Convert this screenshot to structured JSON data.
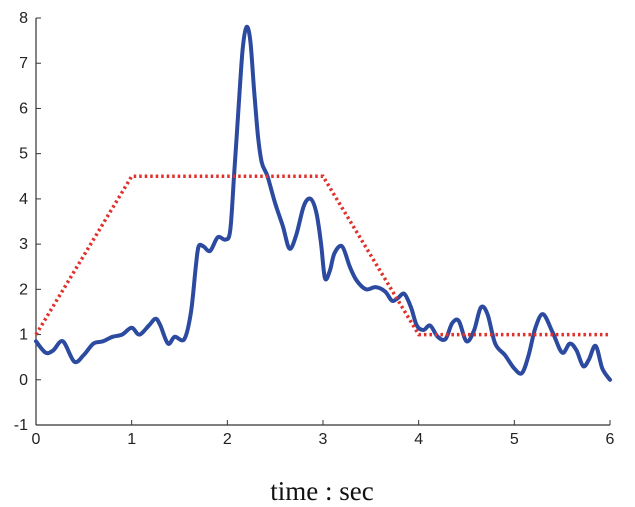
{
  "chart_data": {
    "type": "line",
    "title": "",
    "xlabel": "time : sec",
    "ylabel": "",
    "xlim": [
      0,
      6
    ],
    "ylim": [
      -1,
      8
    ],
    "xticks": [
      0,
      1,
      2,
      3,
      4,
      5,
      6
    ],
    "yticks": [
      -1,
      0,
      1,
      2,
      3,
      4,
      5,
      6,
      7,
      8
    ],
    "grid": false,
    "legend": "none",
    "series": [
      {
        "style": "solid",
        "color": "#2b4aa0",
        "x": [
          0.0,
          0.1,
          0.18,
          0.28,
          0.4,
          0.5,
          0.6,
          0.7,
          0.8,
          0.9,
          1.0,
          1.08,
          1.18,
          1.25,
          1.3,
          1.38,
          1.45,
          1.55,
          1.62,
          1.67,
          1.7,
          1.75,
          1.82,
          1.9,
          1.98,
          2.03,
          2.07,
          2.12,
          2.16,
          2.2,
          2.24,
          2.28,
          2.32,
          2.36,
          2.42,
          2.5,
          2.58,
          2.65,
          2.72,
          2.8,
          2.87,
          2.93,
          2.98,
          3.02,
          3.07,
          3.12,
          3.2,
          3.28,
          3.35,
          3.45,
          3.55,
          3.65,
          3.72,
          3.78,
          3.85,
          3.92,
          3.98,
          4.05,
          4.12,
          4.2,
          4.28,
          4.35,
          4.42,
          4.5,
          4.58,
          4.65,
          4.72,
          4.8,
          4.9,
          5.0,
          5.08,
          5.15,
          5.22,
          5.3,
          5.4,
          5.5,
          5.58,
          5.65,
          5.72,
          5.78,
          5.85,
          5.92,
          6.0
        ],
        "y": [
          0.85,
          0.6,
          0.65,
          0.85,
          0.4,
          0.55,
          0.8,
          0.85,
          0.95,
          1.0,
          1.15,
          1.0,
          1.2,
          1.35,
          1.2,
          0.8,
          0.95,
          0.9,
          1.5,
          2.5,
          2.95,
          2.95,
          2.85,
          3.15,
          3.1,
          3.3,
          4.5,
          6.1,
          7.3,
          7.8,
          7.5,
          6.4,
          5.4,
          4.8,
          4.5,
          3.9,
          3.4,
          2.9,
          3.2,
          3.85,
          4.0,
          3.7,
          3.0,
          2.25,
          2.4,
          2.8,
          2.95,
          2.5,
          2.2,
          2.0,
          2.05,
          1.95,
          1.75,
          1.8,
          1.9,
          1.6,
          1.2,
          1.1,
          1.2,
          0.95,
          0.9,
          1.25,
          1.3,
          0.85,
          1.1,
          1.6,
          1.45,
          0.8,
          0.55,
          0.25,
          0.15,
          0.55,
          1.15,
          1.45,
          1.05,
          0.6,
          0.8,
          0.65,
          0.3,
          0.45,
          0.75,
          0.25,
          0.0
        ]
      },
      {
        "style": "dotted",
        "color": "#e0302b",
        "x": [
          0,
          1,
          3,
          4,
          6
        ],
        "y": [
          1,
          4.5,
          4.5,
          1,
          1
        ]
      }
    ]
  }
}
